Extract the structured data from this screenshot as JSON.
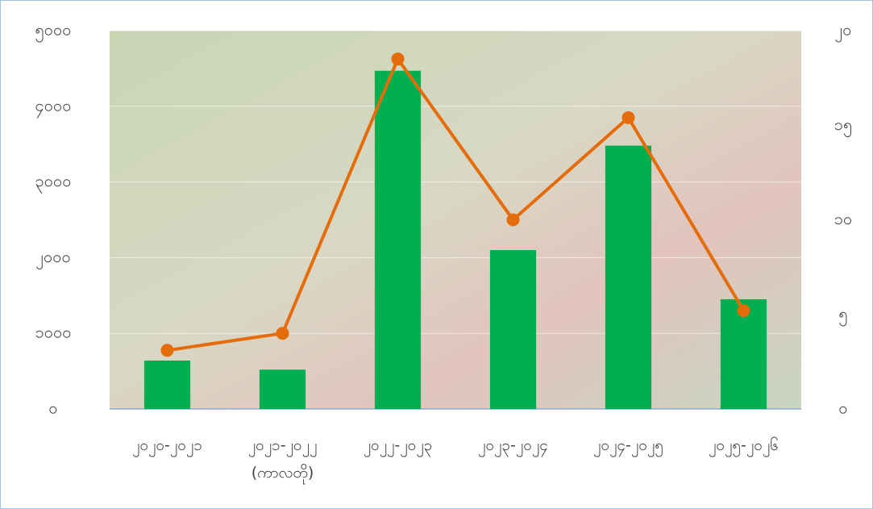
{
  "chart_data": {
    "type": "bar-line",
    "categories": [
      "၂၀၂၀-၂၀၂၁",
      "၂၀၂၁-၂၀၂၂\n(ကာလတို)",
      "၂၀၂၂-၂၀၂၃",
      "၂၀၂၃-၂၀၂၄",
      "၂၀၂၄-၂၀၂၅",
      "၂၀၂၅-၂၀၂၆"
    ],
    "series": [
      {
        "type": "bar",
        "color": "#00b050",
        "values": [
          640,
          520,
          4470,
          2100,
          3480,
          1450
        ]
      },
      {
        "type": "line",
        "axis": "y2",
        "color": "#e46c0a",
        "values": [
          3.1,
          4,
          18.5,
          10,
          15.4,
          5.2
        ]
      }
    ],
    "ylim": [
      0,
      5000
    ],
    "yticks": [
      {
        "value": 0,
        "label": "၀"
      },
      {
        "value": 1000,
        "label": "၁၀၀၀"
      },
      {
        "value": 2000,
        "label": "၂၀၀၀"
      },
      {
        "value": 3000,
        "label": "၃၀၀၀"
      },
      {
        "value": 4000,
        "label": "၄၀၀၀"
      },
      {
        "value": 5000,
        "label": "၅၀၀၀"
      }
    ],
    "y2lim": [
      0,
      20
    ],
    "y2ticks": [
      {
        "value": 0,
        "label": "၀"
      },
      {
        "value": 5,
        "label": "၅"
      },
      {
        "value": 10,
        "label": "၁၀"
      },
      {
        "value": 15,
        "label": "၁၅"
      },
      {
        "value": 20,
        "label": "၂၀"
      }
    ],
    "grid": true
  }
}
